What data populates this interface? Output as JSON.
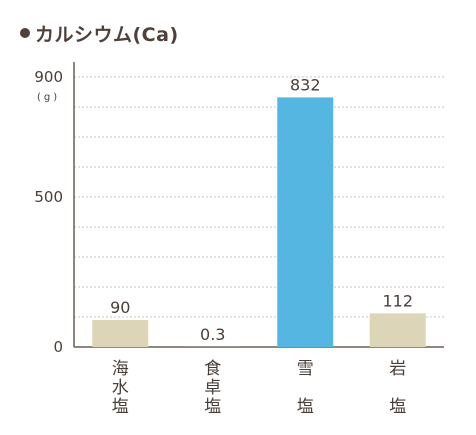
{
  "chart_data": {
    "type": "bar",
    "title": "カルシウム(Ca)",
    "unit_label": "(g)",
    "categories": [
      "海水塩",
      "食卓塩",
      "雪塩",
      "岩塩"
    ],
    "category_lines": [
      [
        "海",
        "水",
        "塩"
      ],
      [
        "食",
        "卓",
        "塩"
      ],
      [
        "雪",
        "",
        "塩"
      ],
      [
        "岩",
        "",
        "塩"
      ]
    ],
    "values": [
      90,
      0.3,
      832,
      112
    ],
    "data_labels": [
      "90",
      "0.3",
      "832",
      "112"
    ],
    "bar_colors": [
      "#ddd5b8",
      "#ddd5b8",
      "#55b6e1",
      "#ddd5b8"
    ],
    "yticks": [
      0,
      500,
      900
    ],
    "ytick_labels": [
      "0",
      "500",
      "900"
    ],
    "ylim": [
      0,
      900
    ],
    "gridlines": [
      100,
      200,
      300,
      400,
      500,
      600,
      700,
      800,
      900
    ],
    "grid": true,
    "grid_style": "dashed"
  }
}
